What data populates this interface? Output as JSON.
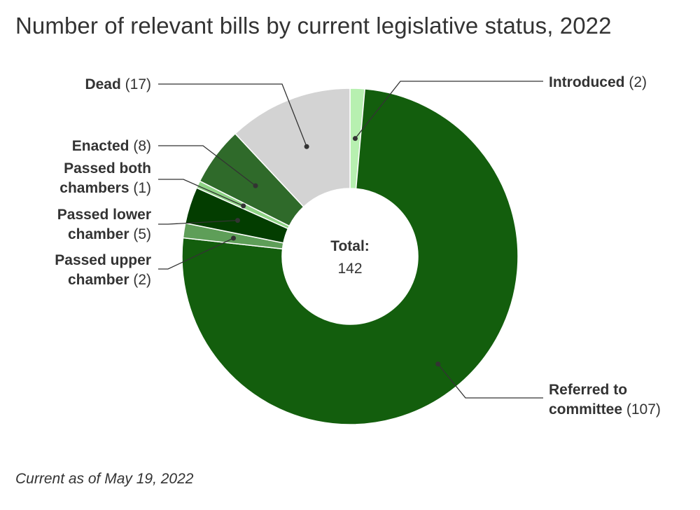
{
  "title": "Number of relevant bills by current legislative status, 2022",
  "footnote": "Current as of May 19, 2022",
  "center": {
    "label": "Total:",
    "value": "142"
  },
  "chart_data": {
    "type": "pie",
    "variant": "donut",
    "title": "Number of relevant bills by current legislative status, 2022",
    "total": 142,
    "slices": [
      {
        "name": "Introduced",
        "label_lines": [
          "Introduced"
        ],
        "value": 2,
        "color": "#b7f0b0",
        "side": "right"
      },
      {
        "name": "Referred to committee",
        "label_lines": [
          "Referred to",
          "committee"
        ],
        "value": 107,
        "color": "#135e0d",
        "side": "right"
      },
      {
        "name": "Passed upper chamber",
        "label_lines": [
          "Passed upper",
          "chamber"
        ],
        "value": 2,
        "color": "#5e9e58",
        "side": "left"
      },
      {
        "name": "Passed lower chamber",
        "label_lines": [
          "Passed lower",
          "chamber"
        ],
        "value": 5,
        "color": "#033d00",
        "side": "left"
      },
      {
        "name": "Passed both chambers",
        "label_lines": [
          "Passed both",
          "chambers"
        ],
        "value": 1,
        "color": "#8fd386",
        "side": "left"
      },
      {
        "name": "Enacted",
        "label_lines": [
          "Enacted"
        ],
        "value": 8,
        "color": "#2f6a2a",
        "side": "left"
      },
      {
        "name": "Dead",
        "label_lines": [
          "Dead"
        ],
        "value": 17,
        "color": "#d3d3d3",
        "side": "left"
      }
    ]
  }
}
